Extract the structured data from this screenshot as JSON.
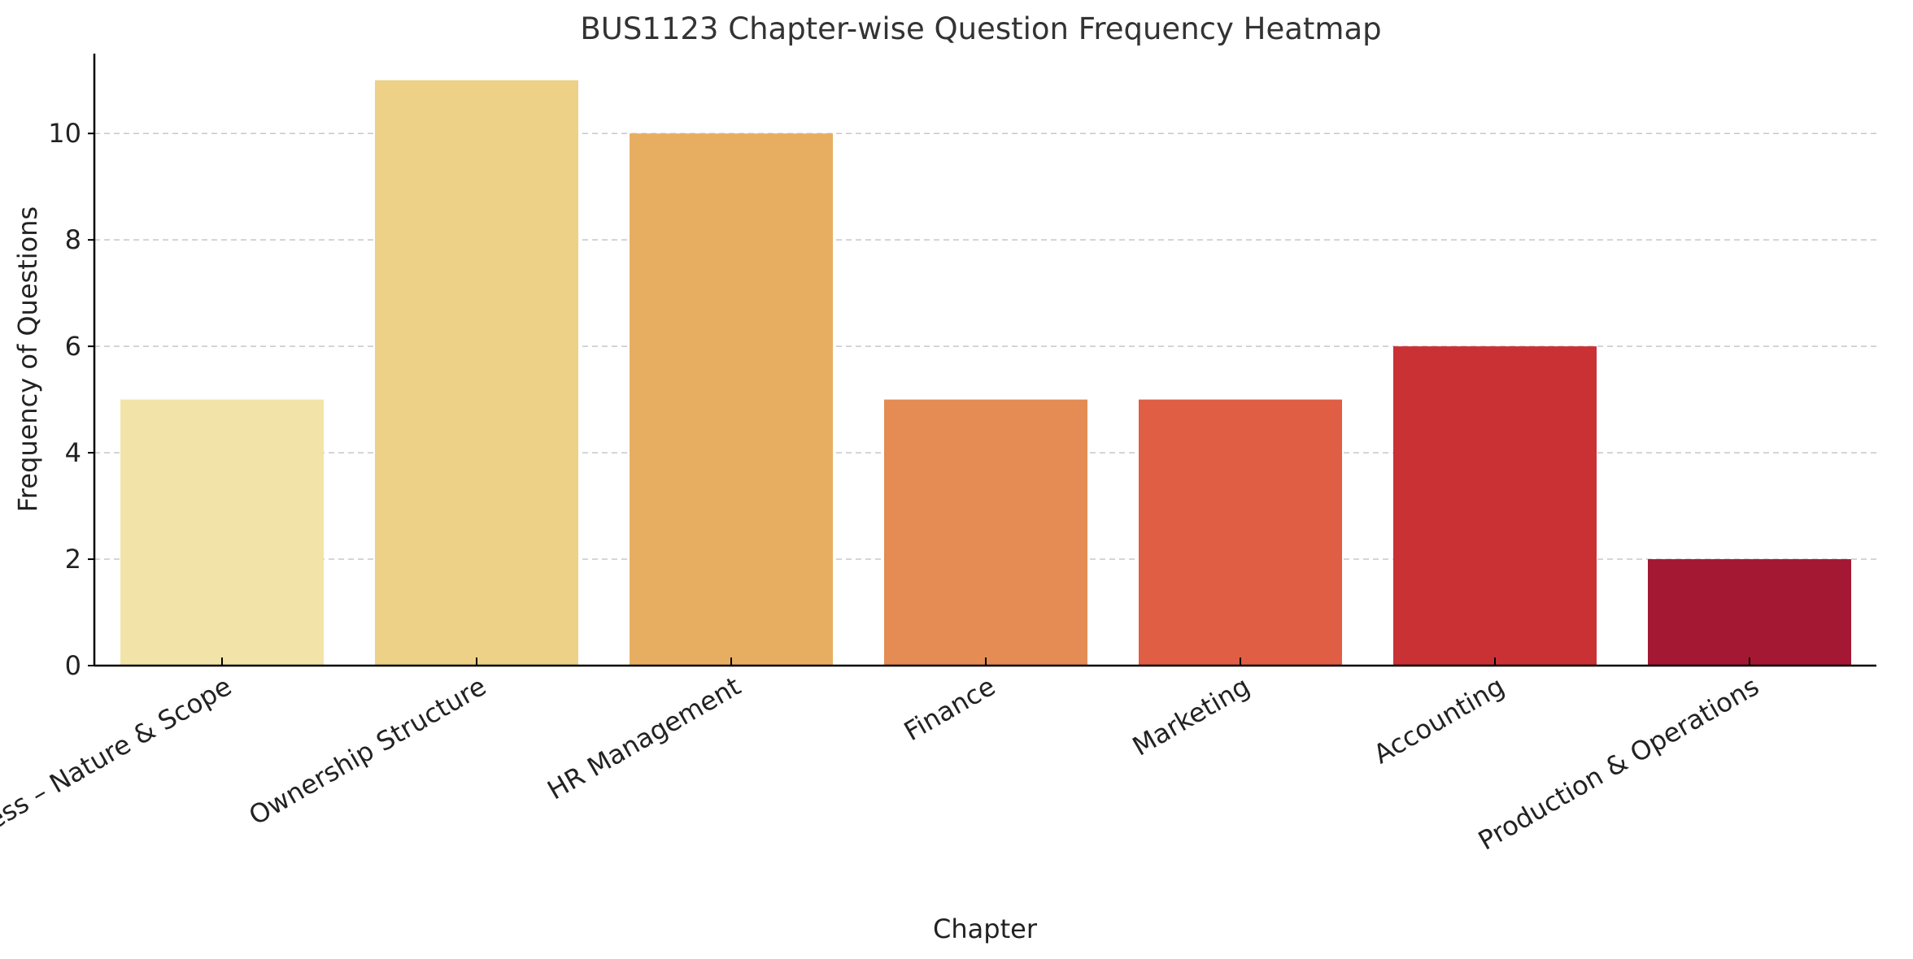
{
  "chart_data": {
    "type": "bar",
    "title": "BUS1123 Chapter-wise Question Frequency Heatmap",
    "xlabel": "Chapter",
    "ylabel": "Frequency of Questions",
    "categories": [
      "The Business – Nature & Scope",
      "Ownership Structure",
      "HR Management",
      "Finance",
      "Marketing",
      "Accounting",
      "Production & Operations"
    ],
    "values": [
      5,
      11,
      10,
      5,
      5,
      6,
      2
    ],
    "colors": [
      "#f2e4a8",
      "#ecd186",
      "#e7ae62",
      "#e48c53",
      "#e05e44",
      "#c93135",
      "#a41834"
    ],
    "ylim": [
      0,
      11.5
    ],
    "yticks": [
      0,
      2,
      4,
      6,
      8,
      10
    ],
    "grid": true,
    "grid_axis": "y",
    "legend": "none"
  }
}
